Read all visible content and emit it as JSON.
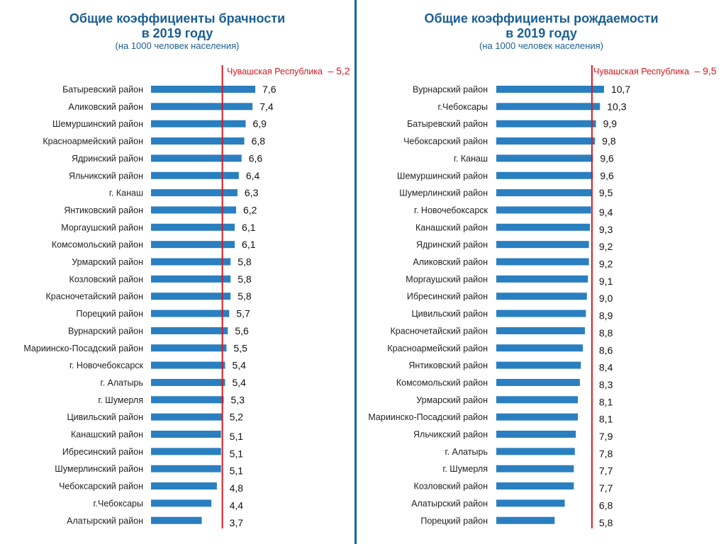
{
  "chart_data": [
    {
      "type": "bar",
      "orientation": "horizontal",
      "title": "Общие коэффициенты брачности",
      "title_line2": "в 2019 году",
      "subtitle": "(на 1000 человек населения)",
      "reference": {
        "label": "Чувашская Республика",
        "value_text": "– 5,2",
        "value": 5.2,
        "color": "#d71920"
      },
      "bar_color": "#2a7fc0",
      "categories": [
        "Батыревский район",
        "Аликовский район",
        "Шемуршинский район",
        "Красноармейский район",
        "Ядринский район",
        "Яльчикский район",
        "г. Канаш",
        "Янтиковский район",
        "Моргаушский район",
        "Комсомольский район",
        "Урмарский район",
        "Козловский район",
        "Красночетайский район",
        "Порецкий район",
        "Вурнарский район",
        "Мариинско-Посадский район",
        "г. Новочебоксарск",
        "г. Алатырь",
        "г. Шумерля",
        "Цивильский район",
        "Канашский район",
        "Ибресинский район",
        "Шумерлинский район",
        "Чебоксарский район",
        "г.Чебоксары",
        "Алатырский район"
      ],
      "values": [
        7.6,
        7.4,
        6.9,
        6.8,
        6.6,
        6.4,
        6.3,
        6.2,
        6.1,
        6.1,
        5.8,
        5.8,
        5.8,
        5.7,
        5.6,
        5.5,
        5.4,
        5.4,
        5.3,
        5.2,
        5.1,
        5.1,
        5.1,
        4.8,
        4.4,
        3.7
      ],
      "value_labels": [
        "7,6",
        "7,4",
        "6,9",
        "6,8",
        "6,6",
        "6,4",
        "6,3",
        "6,2",
        "6,1",
        "6,1",
        "5,8",
        "5,8",
        "5,8",
        "5,7",
        "5,6",
        "5,5",
        "5,4",
        "5,4",
        "5,3",
        "5,2",
        "5,1",
        "5,1",
        "5,1",
        "4,8",
        "4,4",
        "3,7"
      ],
      "xlim": [
        0,
        7.6
      ],
      "grid": false
    },
    {
      "type": "bar",
      "orientation": "horizontal",
      "title": "Общие коэффициенты рождаемости",
      "title_line2": "в 2019 году",
      "subtitle": "(на 1000 человек населения)",
      "reference": {
        "label": "Чувашская Республика",
        "value_text": "– 9,5",
        "value": 9.5,
        "color": "#d71920"
      },
      "bar_color": "#2a7fc0",
      "categories": [
        "Вурнарский район",
        "г.Чебоксары",
        "Батыревский район",
        "Чебоксарский район",
        "г. Канаш",
        "Шемуршинский район",
        "Шумерлинский район",
        "г. Новочебоксарск",
        "Канашский район",
        "Ядринский район",
        "Аликовский район",
        "Моргаушский район",
        "Ибресинский район",
        "Цивильский район",
        "Красночетайский район",
        "Красноармейский район",
        "Янтиковский район",
        "Комсомольский район",
        "Урмарский район",
        "Мариинско-Посадский район",
        "Яльчикский район",
        "г. Алатырь",
        "г. Шумерля",
        "Козловский район",
        "Алатырский район",
        "Порецкий район"
      ],
      "values": [
        10.7,
        10.3,
        9.9,
        9.8,
        9.6,
        9.6,
        9.5,
        9.4,
        9.3,
        9.2,
        9.2,
        9.1,
        9.0,
        8.9,
        8.8,
        8.6,
        8.4,
        8.3,
        8.1,
        8.1,
        7.9,
        7.8,
        7.7,
        7.7,
        6.8,
        5.8
      ],
      "value_labels": [
        "10,7",
        "10,3",
        "9,9",
        "9,8",
        "9,6",
        "9,6",
        "9,5",
        "9,4",
        "9,3",
        "9,2",
        "9,2",
        "9,1",
        "9,0",
        "8,9",
        "8,8",
        "8,6",
        "8,4",
        "8,3",
        "8,1",
        "8,1",
        "7,9",
        "7,8",
        "7,7",
        "7,7",
        "6,8",
        "5,8"
      ],
      "xlim": [
        0,
        10.7
      ],
      "grid": false
    }
  ]
}
